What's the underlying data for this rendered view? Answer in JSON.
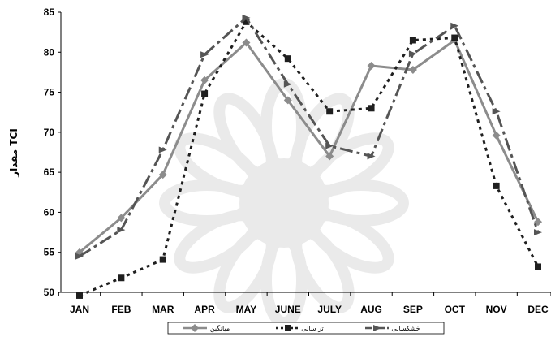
{
  "chart_data": {
    "type": "line",
    "categories": [
      "JAN",
      "FEB",
      "MAR",
      "APR",
      "MAY",
      "JUNE",
      "JULY",
      "AUG",
      "SEP",
      "OCT",
      "NOV",
      "DEC"
    ],
    "ylabel": "مقدار TCI",
    "ylim": [
      50,
      85
    ],
    "yticks": [
      50,
      55,
      60,
      65,
      70,
      75,
      80,
      85
    ],
    "grid": false,
    "legend_position": "bottom",
    "series": [
      {
        "name": "میانگین",
        "style": "solid",
        "color": "#8c8c8c",
        "marker": "diamond",
        "values": [
          55.0,
          59.3,
          64.7,
          76.5,
          81.2,
          74.0,
          67.0,
          78.3,
          77.8,
          81.5,
          69.6,
          58.8
        ]
      },
      {
        "name": "تر سالی",
        "style": "dotted",
        "color": "#1f1f1f",
        "marker": "square",
        "values": [
          49.6,
          51.8,
          54.1,
          74.8,
          83.8,
          79.2,
          72.6,
          73.0,
          81.5,
          81.8,
          63.3,
          53.2
        ]
      },
      {
        "name": "خشکسالی",
        "style": "dashdot",
        "color": "#555555",
        "marker": "triangle",
        "values": [
          54.5,
          57.8,
          67.8,
          79.7,
          84.3,
          76.0,
          68.3,
          67.0,
          79.8,
          83.3,
          72.6,
          57.5
        ]
      }
    ]
  }
}
